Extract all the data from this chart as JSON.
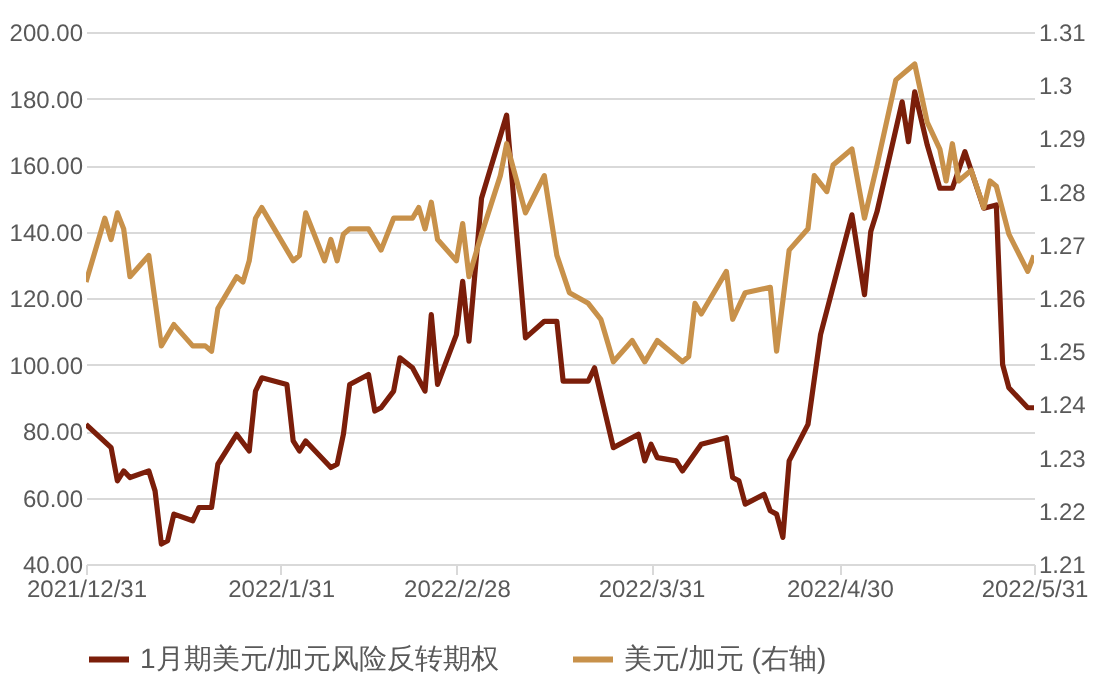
{
  "chart_data": {
    "type": "line",
    "xlim": [
      "2021-12-31",
      "2022-05-31"
    ],
    "xticks": [
      {
        "value": "2021-12-31",
        "label": "2021/12/31"
      },
      {
        "value": "2022-01-31",
        "label": "2022/1/31"
      },
      {
        "value": "2022-02-28",
        "label": "2022/2/28"
      },
      {
        "value": "2022-03-31",
        "label": "2022/3/31"
      },
      {
        "value": "2022-04-30",
        "label": "2022/4/30"
      },
      {
        "value": "2022-05-31",
        "label": "2022/5/31"
      }
    ],
    "ylim": [
      40,
      200
    ],
    "yticks": [
      {
        "value": 40,
        "label": "40.00"
      },
      {
        "value": 60,
        "label": "60.00"
      },
      {
        "value": 80,
        "label": "80.00"
      },
      {
        "value": 100,
        "label": "100.00"
      },
      {
        "value": 120,
        "label": "120.00"
      },
      {
        "value": 140,
        "label": "140.00"
      },
      {
        "value": 160,
        "label": "160.00"
      },
      {
        "value": 180,
        "label": "180.00"
      },
      {
        "value": 200,
        "label": "200.00"
      }
    ],
    "y2lim": [
      1.21,
      1.31
    ],
    "y2ticks": [
      1.21,
      1.22,
      1.23,
      1.24,
      1.25,
      1.26,
      1.27,
      1.28,
      1.29,
      1.3,
      1.31
    ],
    "grid": "y",
    "legend": "bottom",
    "series": [
      {
        "name": "1月期美元/加元风险反转期权",
        "color": "#7b1e0a",
        "x": [
          "2021-12-31",
          "2022-01-04",
          "2022-01-05",
          "2022-01-06",
          "2022-01-07",
          "2022-01-10",
          "2022-01-11",
          "2022-01-12",
          "2022-01-13",
          "2022-01-14",
          "2022-01-17",
          "2022-01-18",
          "2022-01-20",
          "2022-01-21",
          "2022-01-24",
          "2022-01-26",
          "2022-01-27",
          "2022-01-28",
          "2022-02-01",
          "2022-02-02",
          "2022-02-03",
          "2022-02-04",
          "2022-02-08",
          "2022-02-09",
          "2022-02-10",
          "2022-02-11",
          "2022-02-14",
          "2022-02-15",
          "2022-02-16",
          "2022-02-18",
          "2022-02-19",
          "2022-02-21",
          "2022-02-23",
          "2022-02-24",
          "2022-02-25",
          "2022-02-28",
          "2022-03-01",
          "2022-03-02",
          "2022-03-04",
          "2022-03-08",
          "2022-03-11",
          "2022-03-14",
          "2022-03-16",
          "2022-03-17",
          "2022-03-21",
          "2022-03-22",
          "2022-03-25",
          "2022-03-29",
          "2022-03-30",
          "2022-03-31",
          "2022-04-01",
          "2022-04-04",
          "2022-04-05",
          "2022-04-08",
          "2022-04-12",
          "2022-04-13",
          "2022-04-14",
          "2022-04-15",
          "2022-04-18",
          "2022-04-19",
          "2022-04-20",
          "2022-04-21",
          "2022-04-22",
          "2022-04-25",
          "2022-04-27",
          "2022-05-02",
          "2022-05-04",
          "2022-05-05",
          "2022-05-06",
          "2022-05-10",
          "2022-05-11",
          "2022-05-12",
          "2022-05-14",
          "2022-05-16",
          "2022-05-18",
          "2022-05-20",
          "2022-05-23",
          "2022-05-25",
          "2022-05-26",
          "2022-05-27",
          "2022-05-30",
          "2022-05-31"
        ],
        "values": [
          82,
          75,
          65,
          68,
          66,
          68,
          62,
          46,
          47,
          55,
          53,
          57,
          57,
          70,
          79,
          74,
          92,
          96,
          94,
          77,
          74,
          77,
          69,
          70,
          79,
          94,
          97,
          86,
          87,
          92,
          102,
          99,
          92,
          115,
          94,
          109,
          125,
          107,
          150,
          175,
          108,
          113,
          113,
          95,
          95,
          99,
          75,
          79,
          71,
          76,
          72,
          71,
          68,
          76,
          78,
          66,
          65,
          58,
          61,
          56,
          55,
          48,
          71,
          82,
          109,
          145,
          121,
          140,
          146,
          179,
          167,
          182,
          166,
          153,
          153,
          164,
          147,
          148,
          100,
          93,
          87,
          87
        ]
      },
      {
        "name": "美元/加元 (右轴)",
        "color": "#c8914a",
        "axis": "y2",
        "x": [
          "2021-12-31",
          "2022-01-03",
          "2022-01-04",
          "2022-01-05",
          "2022-01-06",
          "2022-01-07",
          "2022-01-10",
          "2022-01-12",
          "2022-01-14",
          "2022-01-17",
          "2022-01-19",
          "2022-01-20",
          "2022-01-21",
          "2022-01-24",
          "2022-01-25",
          "2022-01-26",
          "2022-01-27",
          "2022-01-28",
          "2022-02-02",
          "2022-02-03",
          "2022-02-04",
          "2022-02-07",
          "2022-02-08",
          "2022-02-09",
          "2022-02-10",
          "2022-02-11",
          "2022-02-14",
          "2022-02-16",
          "2022-02-18",
          "2022-02-21",
          "2022-02-22",
          "2022-02-23",
          "2022-02-24",
          "2022-02-25",
          "2022-02-28",
          "2022-03-01",
          "2022-03-02",
          "2022-03-04",
          "2022-03-07",
          "2022-03-08",
          "2022-03-11",
          "2022-03-14",
          "2022-03-16",
          "2022-03-18",
          "2022-03-21",
          "2022-03-23",
          "2022-03-25",
          "2022-03-28",
          "2022-03-30",
          "2022-04-01",
          "2022-04-05",
          "2022-04-06",
          "2022-04-07",
          "2022-04-08",
          "2022-04-12",
          "2022-04-13",
          "2022-04-15",
          "2022-04-19",
          "2022-04-20",
          "2022-04-22",
          "2022-04-25",
          "2022-04-26",
          "2022-04-28",
          "2022-04-29",
          "2022-05-02",
          "2022-05-04",
          "2022-05-06",
          "2022-05-09",
          "2022-05-11",
          "2022-05-12",
          "2022-05-14",
          "2022-05-16",
          "2022-05-17",
          "2022-05-18",
          "2022-05-19",
          "2022-05-21",
          "2022-05-23",
          "2022-05-24",
          "2022-05-25",
          "2022-05-27",
          "2022-05-30",
          "2022-05-31"
        ],
        "values": [
          1.263,
          1.275,
          1.271,
          1.276,
          1.273,
          1.264,
          1.268,
          1.251,
          1.255,
          1.251,
          1.251,
          1.25,
          1.258,
          1.264,
          1.263,
          1.267,
          1.275,
          1.277,
          1.267,
          1.268,
          1.276,
          1.267,
          1.271,
          1.267,
          1.272,
          1.273,
          1.273,
          1.269,
          1.275,
          1.275,
          1.277,
          1.273,
          1.278,
          1.271,
          1.267,
          1.274,
          1.264,
          1.272,
          1.283,
          1.289,
          1.276,
          1.283,
          1.268,
          1.261,
          1.259,
          1.256,
          1.248,
          1.252,
          1.248,
          1.252,
          1.248,
          1.249,
          1.259,
          1.257,
          1.265,
          1.256,
          1.261,
          1.262,
          1.25,
          1.269,
          1.273,
          1.283,
          1.28,
          1.285,
          1.288,
          1.275,
          1.285,
          1.301,
          1.303,
          1.304,
          1.293,
          1.288,
          1.282,
          1.289,
          1.282,
          1.284,
          1.277,
          1.282,
          1.281,
          1.272,
          1.265,
          1.268
        ]
      }
    ]
  }
}
